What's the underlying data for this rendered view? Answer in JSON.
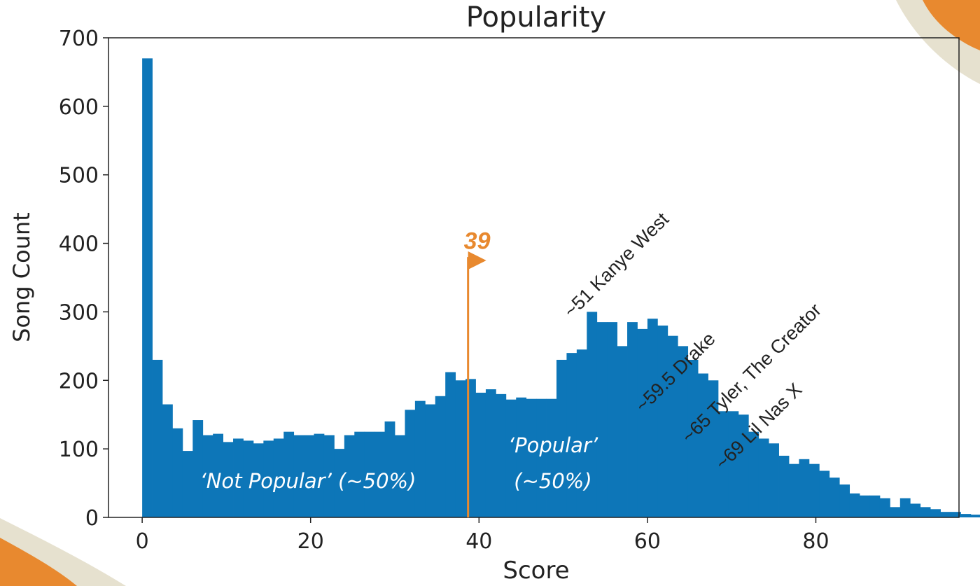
{
  "chart_data": {
    "type": "bar",
    "title": "Popularity",
    "xlabel": "Score",
    "ylabel": "Song Count",
    "xlim": [
      -4,
      97
    ],
    "ylim": [
      0,
      700
    ],
    "xticks": [
      0,
      20,
      40,
      60,
      80
    ],
    "yticks": [
      0,
      100,
      200,
      300,
      400,
      500,
      600,
      700
    ],
    "bin_start": 0,
    "bin_width": 1.2,
    "values": [
      670,
      230,
      165,
      130,
      97,
      142,
      120,
      122,
      110,
      115,
      112,
      108,
      112,
      115,
      125,
      120,
      120,
      122,
      120,
      100,
      120,
      125,
      125,
      125,
      140,
      120,
      157,
      170,
      165,
      177,
      212,
      200,
      202,
      182,
      187,
      180,
      172,
      175,
      173,
      173,
      173,
      230,
      240,
      245,
      300,
      285,
      285,
      250,
      285,
      275,
      290,
      280,
      265,
      250,
      230,
      210,
      200,
      155,
      155,
      150,
      125,
      115,
      108,
      90,
      78,
      85,
      78,
      68,
      58,
      48,
      35,
      32,
      32,
      28,
      15,
      28,
      20,
      15,
      12,
      8,
      8,
      5,
      4,
      3,
      2,
      3,
      3,
      2,
      2,
      2,
      2,
      5,
      3,
      3,
      2,
      2,
      2,
      2
    ],
    "threshold": {
      "x": 38.7,
      "label": "39",
      "color": "#e8892f"
    },
    "regions": [
      {
        "label": "‘Not Popular’ (~50%)"
      },
      {
        "label_line1": "‘Popular’",
        "label_line2": "(~50%)"
      }
    ],
    "annotations": [
      {
        "x": 51,
        "y": 290,
        "label": "~51 Kanye West"
      },
      {
        "x": 59.5,
        "y": 152,
        "label": "~59.5 Drake"
      },
      {
        "x": 65,
        "y": 107,
        "label": "~65 Tyler, The Creator"
      },
      {
        "x": 69,
        "y": 68,
        "label": "~69 Lil Nas X"
      }
    ],
    "bar_color": "#0d76b8",
    "accent_color": "#e8892f",
    "decor_color": "#e6e1cf"
  }
}
